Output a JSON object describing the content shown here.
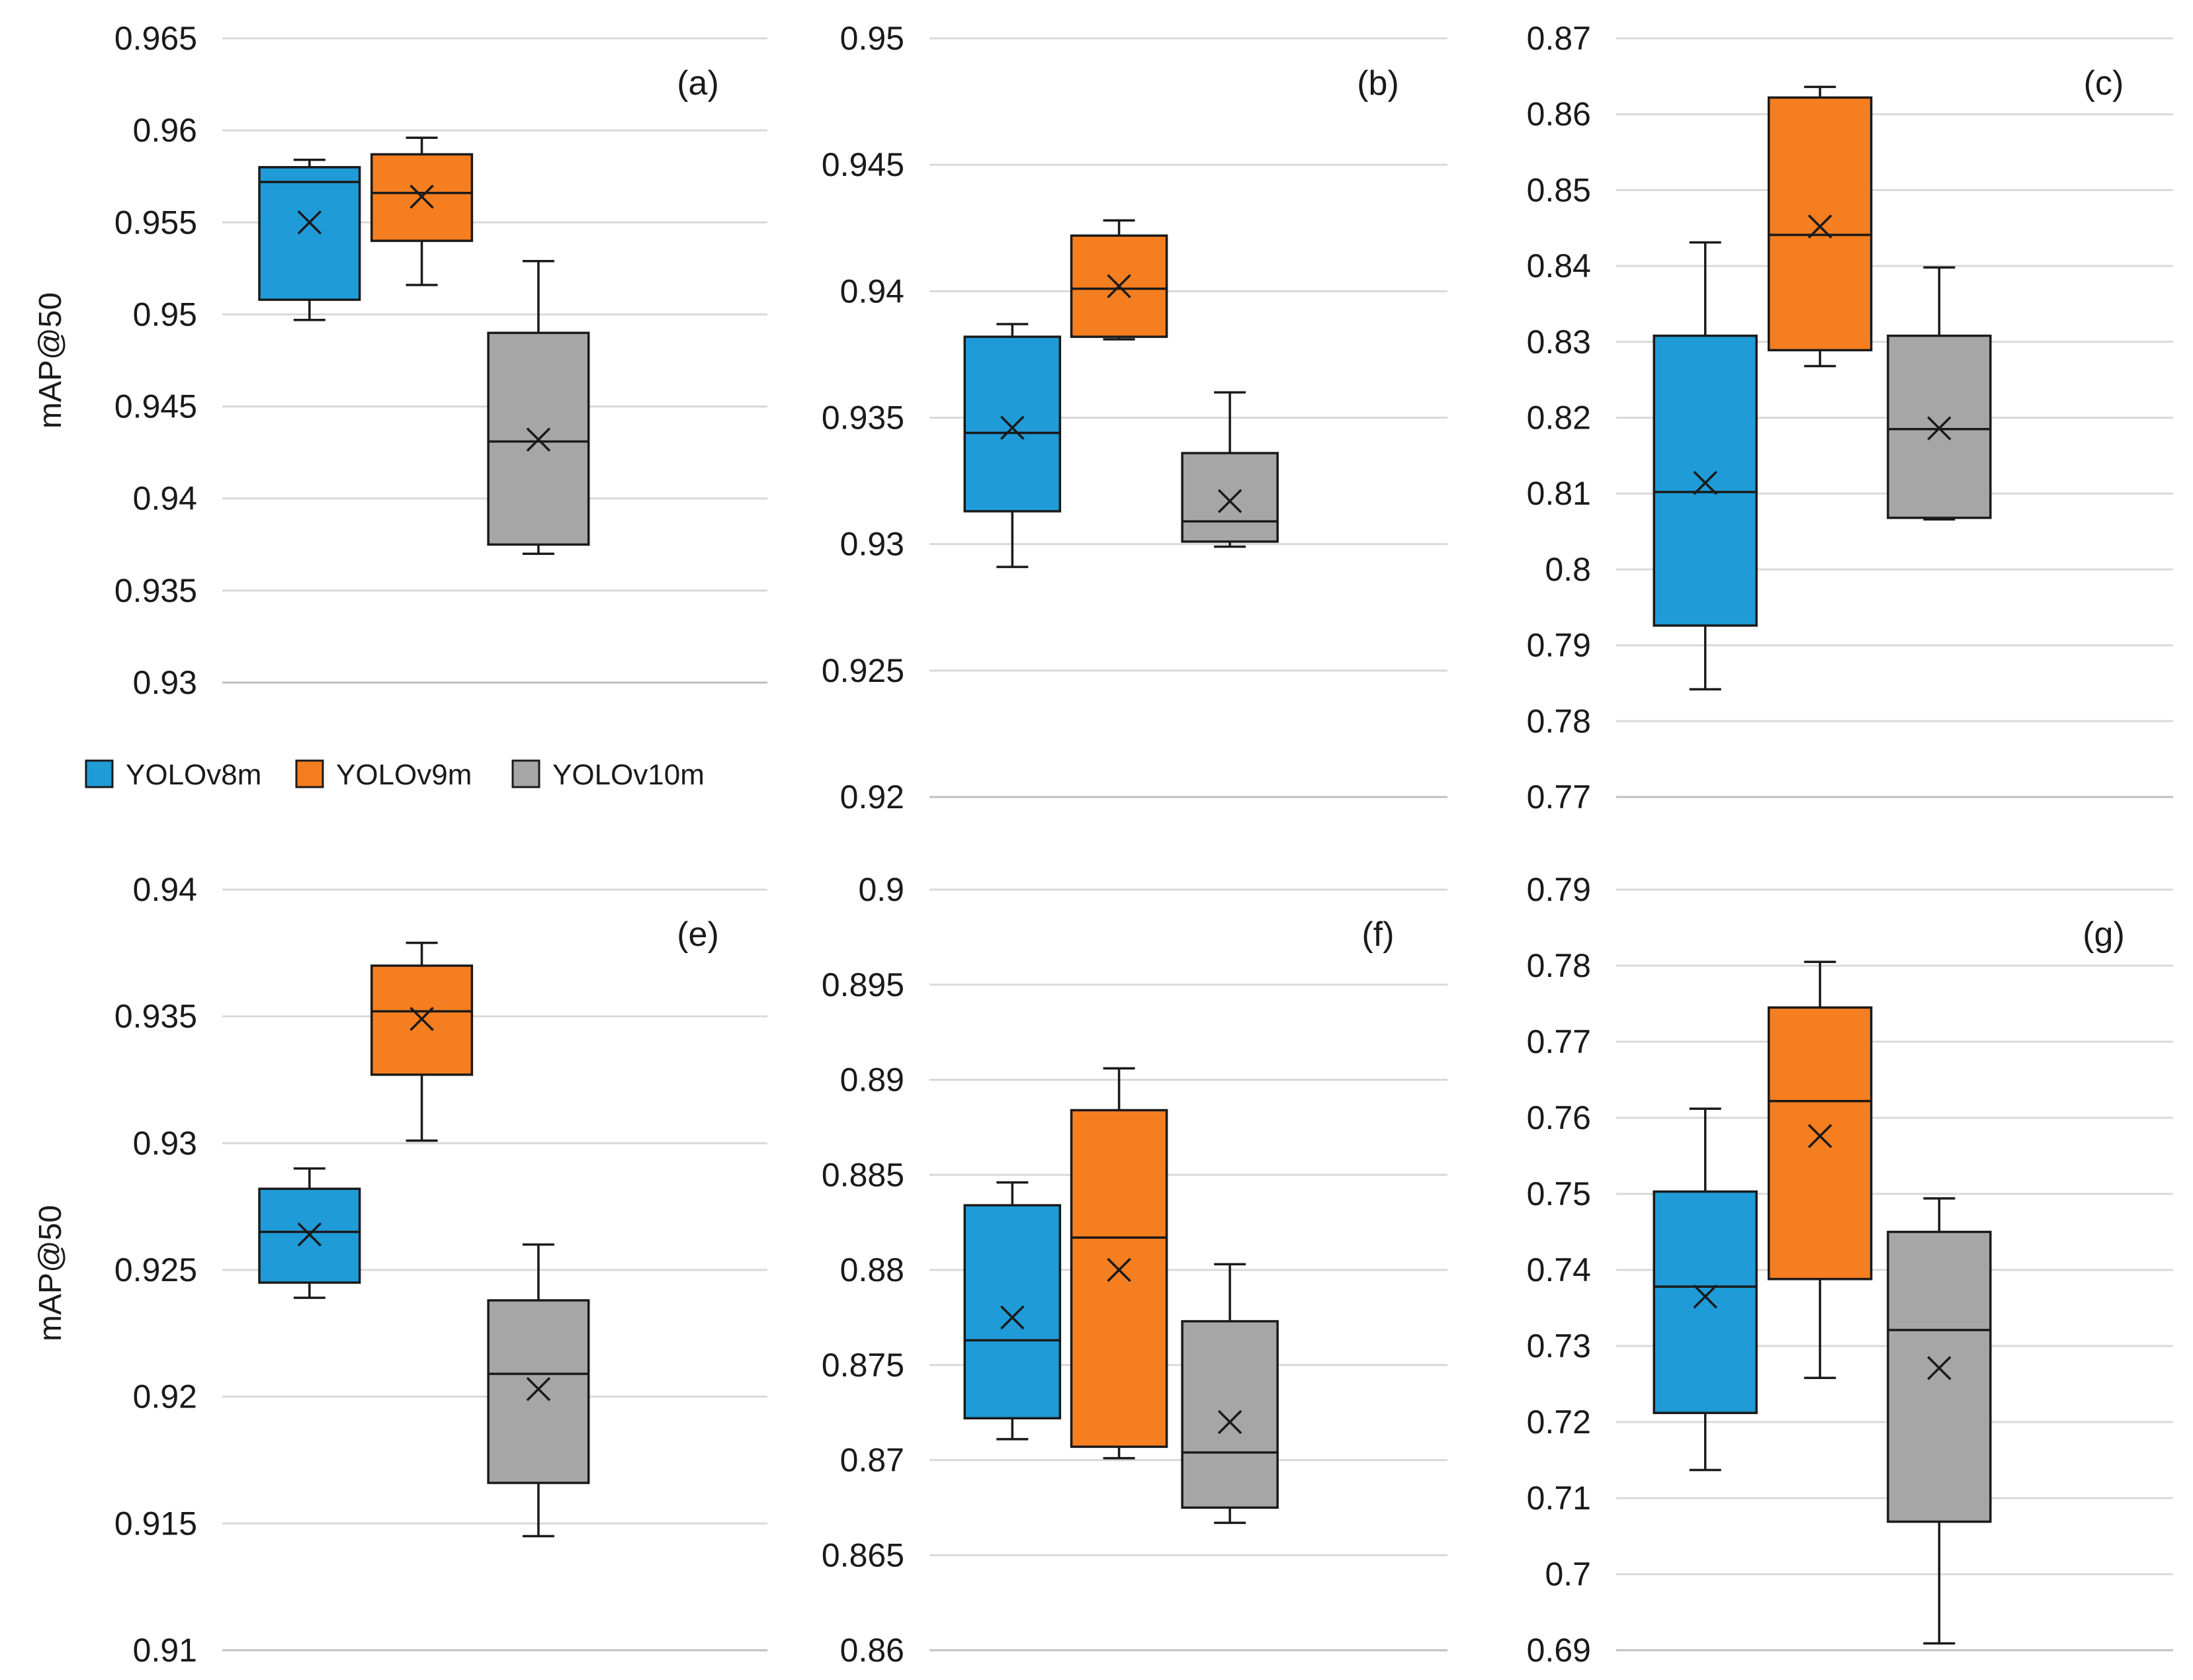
{
  "chart_data": [
    {
      "type": "box",
      "panel_label": "(a)",
      "ylabel": "mAP@50",
      "ylim": [
        0.93,
        0.965
      ],
      "yticks": [
        "0.93",
        "0.935",
        "0.94",
        "0.945",
        "0.95",
        "0.955",
        "0.96",
        "0.965"
      ],
      "series": [
        {
          "name": "YOLOv8m",
          "whisker_low": 0.9497,
          "q1": 0.9508,
          "median": 0.9572,
          "q3": 0.958,
          "whisker_high": 0.9584,
          "mean": 0.955
        },
        {
          "name": "YOLOv9m",
          "whisker_low": 0.9516,
          "q1": 0.954,
          "median": 0.9566,
          "q3": 0.9587,
          "whisker_high": 0.9596,
          "mean": 0.9564
        },
        {
          "name": "YOLOv10m",
          "whisker_low": 0.937,
          "q1": 0.9375,
          "median": 0.9431,
          "q3": 0.949,
          "whisker_high": 0.9529,
          "mean": 0.9432
        }
      ]
    },
    {
      "type": "box",
      "panel_label": "(b)",
      "ylabel": "",
      "ylim": [
        0.92,
        0.95
      ],
      "yticks": [
        "0.92",
        "0.925",
        "0.93",
        "0.935",
        "0.94",
        "0.945",
        "0.95"
      ],
      "series": [
        {
          "name": "YOLOv8m",
          "whisker_low": 0.9291,
          "q1": 0.9313,
          "median": 0.9344,
          "q3": 0.9382,
          "whisker_high": 0.9387,
          "mean": 0.9346
        },
        {
          "name": "YOLOv9m",
          "whisker_low": 0.9381,
          "q1": 0.9382,
          "median": 0.9401,
          "q3": 0.9422,
          "whisker_high": 0.9428,
          "mean": 0.9402
        },
        {
          "name": "YOLOv10m",
          "whisker_low": 0.9299,
          "q1": 0.9301,
          "median": 0.9309,
          "q3": 0.9336,
          "whisker_high": 0.936,
          "mean": 0.9317
        }
      ]
    },
    {
      "type": "box",
      "panel_label": "(c)",
      "ylabel": "",
      "ylim": [
        0.77,
        0.87
      ],
      "yticks": [
        "0.77",
        "0.78",
        "0.79",
        "0.8",
        "0.81",
        "0.82",
        "0.83",
        "0.84",
        "0.85",
        "0.86",
        "0.87"
      ],
      "series": [
        {
          "name": "YOLOv8m",
          "whisker_low": 0.7842,
          "q1": 0.7926,
          "median": 0.8102,
          "q3": 0.8308,
          "whisker_high": 0.8431,
          "mean": 0.8114
        },
        {
          "name": "YOLOv9m",
          "whisker_low": 0.8268,
          "q1": 0.8289,
          "median": 0.8441,
          "q3": 0.8622,
          "whisker_high": 0.8636,
          "mean": 0.8452
        },
        {
          "name": "YOLOv10m",
          "whisker_low": 0.8066,
          "q1": 0.8068,
          "median": 0.8185,
          "q3": 0.8308,
          "whisker_high": 0.8398,
          "mean": 0.8186
        }
      ]
    },
    {
      "type": "box",
      "panel_label": "(e)",
      "ylabel": "mAP@50",
      "ylim": [
        0.91,
        0.94
      ],
      "yticks": [
        "0.91",
        "0.915",
        "0.92",
        "0.925",
        "0.93",
        "0.935",
        "0.94"
      ],
      "series": [
        {
          "name": "YOLOv8m",
          "whisker_low": 0.9239,
          "q1": 0.9245,
          "median": 0.9265,
          "q3": 0.9282,
          "whisker_high": 0.929,
          "mean": 0.9264
        },
        {
          "name": "YOLOv9m",
          "whisker_low": 0.9301,
          "q1": 0.9327,
          "median": 0.9352,
          "q3": 0.937,
          "whisker_high": 0.9379,
          "mean": 0.9349
        },
        {
          "name": "YOLOv10m",
          "whisker_low": 0.9145,
          "q1": 0.9166,
          "median": 0.9209,
          "q3": 0.9238,
          "whisker_high": 0.926,
          "mean": 0.9203
        }
      ]
    },
    {
      "type": "box",
      "panel_label": "(f)",
      "ylabel": "",
      "ylim": [
        0.86,
        0.9
      ],
      "yticks": [
        "0.86",
        "0.865",
        "0.87",
        "0.875",
        "0.88",
        "0.885",
        "0.89",
        "0.895",
        "0.9"
      ],
      "series": [
        {
          "name": "YOLOv8m",
          "whisker_low": 0.8711,
          "q1": 0.8722,
          "median": 0.8763,
          "q3": 0.8834,
          "whisker_high": 0.8846,
          "mean": 0.8775
        },
        {
          "name": "YOLOv9m",
          "whisker_low": 0.8701,
          "q1": 0.8707,
          "median": 0.8817,
          "q3": 0.8884,
          "whisker_high": 0.8906,
          "mean": 0.88
        },
        {
          "name": "YOLOv10m",
          "whisker_low": 0.8667,
          "q1": 0.8675,
          "median": 0.8704,
          "q3": 0.8773,
          "whisker_high": 0.8803,
          "mean": 0.872
        }
      ]
    },
    {
      "type": "box",
      "panel_label": "(g)",
      "ylabel": "",
      "ylim": [
        0.69,
        0.79
      ],
      "yticks": [
        "0.69",
        "0.7",
        "0.71",
        "0.72",
        "0.73",
        "0.74",
        "0.75",
        "0.76",
        "0.77",
        "0.78",
        "0.79"
      ],
      "series": [
        {
          "name": "YOLOv8m",
          "whisker_low": 0.7137,
          "q1": 0.7212,
          "median": 0.7378,
          "q3": 0.7503,
          "whisker_high": 0.7612,
          "mean": 0.7365
        },
        {
          "name": "YOLOv9m",
          "whisker_low": 0.7258,
          "q1": 0.7388,
          "median": 0.7622,
          "q3": 0.7745,
          "whisker_high": 0.7805,
          "mean": 0.7576
        },
        {
          "name": "YOLOv10m",
          "whisker_low": 0.6909,
          "q1": 0.7069,
          "median": 0.7321,
          "q3": 0.745,
          "whisker_high": 0.7494,
          "mean": 0.7271
        }
      ]
    }
  ],
  "legend": {
    "items": [
      {
        "label": "YOLOv8m",
        "color": "#1f9bd7"
      },
      {
        "label": "YOLOv9m",
        "color": "#f57e20"
      },
      {
        "label": "YOLOv10m",
        "color": "#a6a6a6"
      }
    ]
  },
  "colors": {
    "YOLOv8m": "#1f9bd7",
    "YOLOv9m": "#f57e20",
    "YOLOv10m": "#a6a6a6",
    "grid": "#d9d9d9",
    "axis": "#bfbfbf",
    "ink": "#1a1a1a"
  }
}
